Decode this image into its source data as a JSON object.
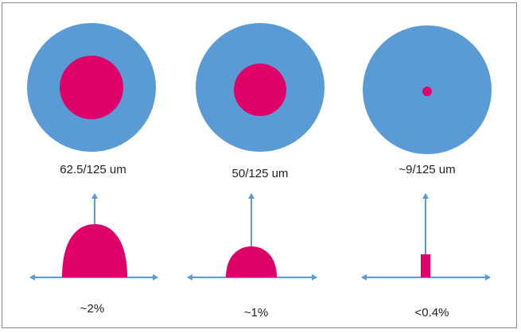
{
  "colors": {
    "cladding": "#5b9bd5",
    "core": "#e0006a",
    "axis": "#5b9bd5"
  },
  "fibers": [
    {
      "label": "62.5/125 um",
      "percent": "~2%",
      "core_to_cladding_ratio": 0.5,
      "profile": "graded-wide"
    },
    {
      "label": "50/125 um",
      "percent": "~1%",
      "core_to_cladding_ratio": 0.4,
      "profile": "graded-narrow"
    },
    {
      "label": "~9/125 um",
      "percent": "<0.4%",
      "core_to_cladding_ratio": 0.072,
      "profile": "step"
    }
  ]
}
